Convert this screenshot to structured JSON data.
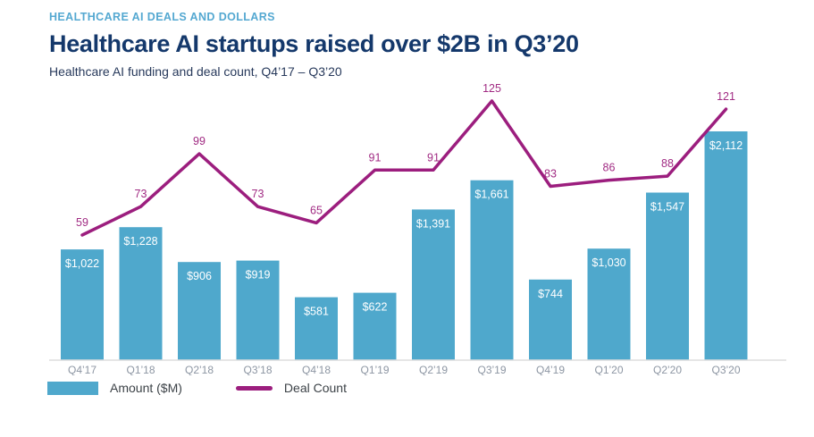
{
  "page": {
    "eyebrow": "HEALTHCARE AI DEALS AND DOLLARS",
    "title": "Healthcare AI startups raised over $2B in Q3’20",
    "subtitle": "Healthcare AI funding and deal count, Q4’17 – Q3’20"
  },
  "legend": {
    "amount_label": "Amount ($M)",
    "deal_label": "Deal Count"
  },
  "colors": {
    "bar": "#4fa8cc",
    "line": "#9c1e7e",
    "deal_label": "#a12b83",
    "bar_value_label": "#ffffff",
    "axis_label": "#8d96a3",
    "axis_line": "#dddddd",
    "eyebrow": "#54a8d1",
    "title": "#14386b"
  },
  "chart_data": {
    "type": "bar",
    "title": "Healthcare AI startups raised over $2B in Q3’20",
    "subtitle": "Healthcare AI funding and deal count, Q4’17 – Q3’20",
    "categories": [
      "Q4’17",
      "Q1’18",
      "Q2’18",
      "Q3’18",
      "Q4’18",
      "Q1’19",
      "Q2’19",
      "Q3’19",
      "Q4’19",
      "Q1’20",
      "Q2’20",
      "Q3’20"
    ],
    "series": [
      {
        "name": "Amount ($M)",
        "type": "bar",
        "values": [
          1022,
          1228,
          906,
          919,
          581,
          622,
          1391,
          1661,
          744,
          1030,
          1547,
          2112
        ],
        "labels": [
          "$1,022",
          "$1,228",
          "$906",
          "$919",
          "$581",
          "$622",
          "$1,391",
          "$1,661",
          "$744",
          "$1,030",
          "$1,547",
          "$2,112"
        ]
      },
      {
        "name": "Deal Count",
        "type": "line",
        "values": [
          59,
          73,
          99,
          73,
          65,
          91,
          91,
          125,
          83,
          86,
          88,
          121
        ]
      }
    ],
    "xlabel": "",
    "ylabel": "",
    "grid": false,
    "legend_position": "bottom-left"
  }
}
